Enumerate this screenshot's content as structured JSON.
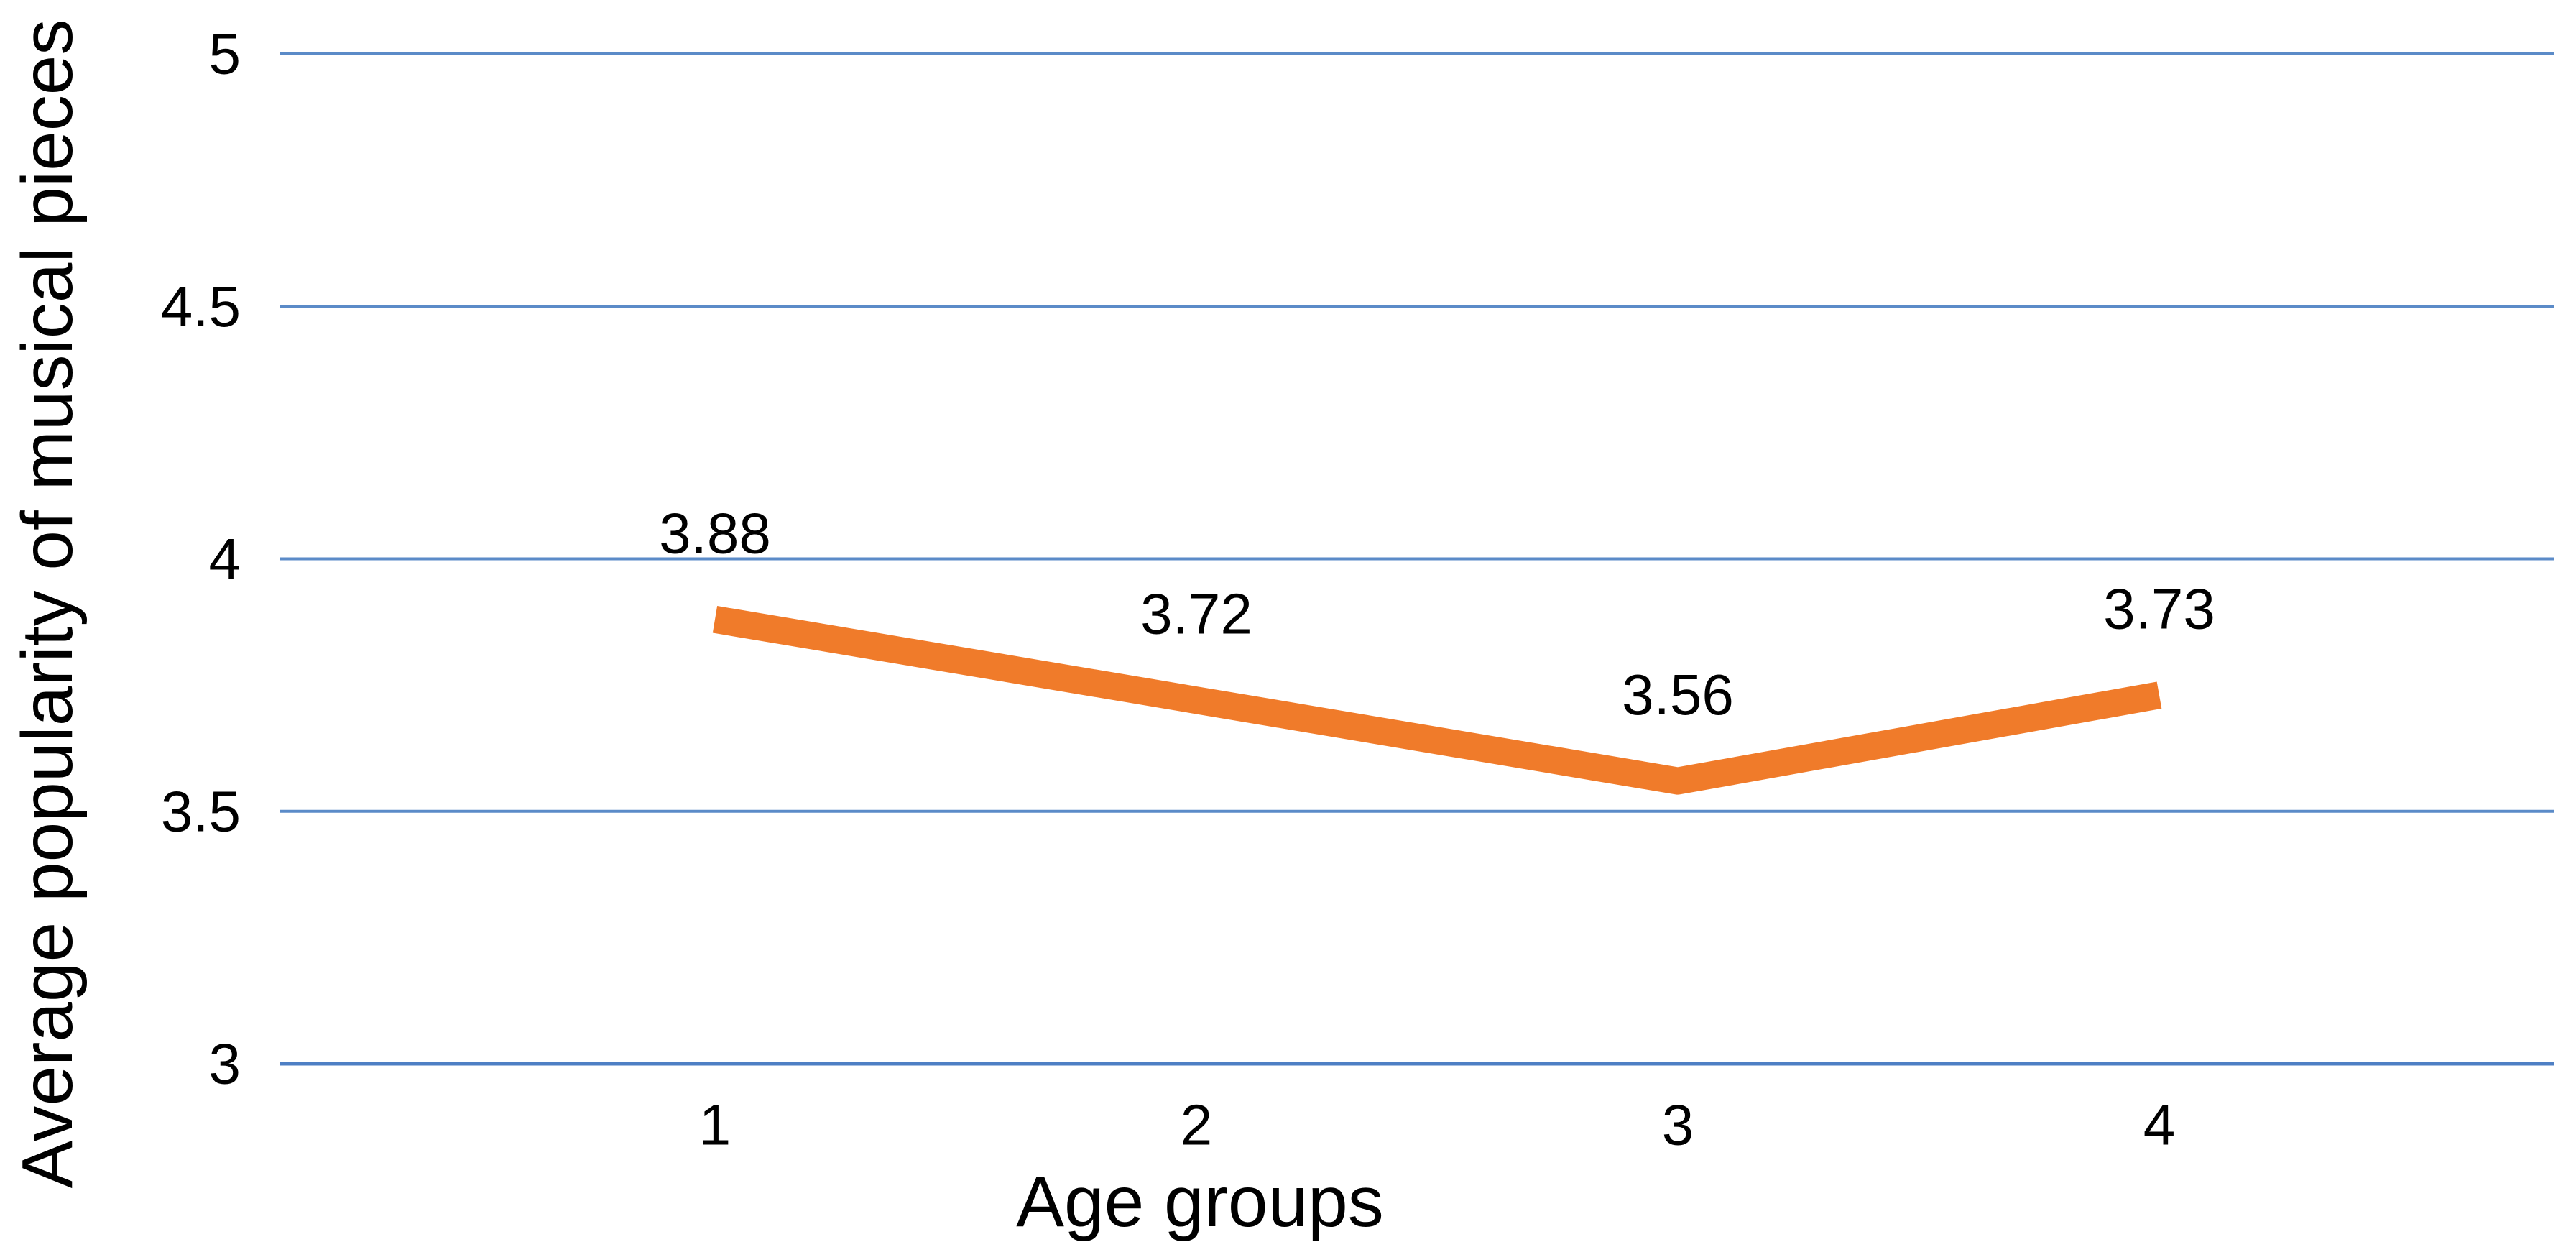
{
  "chart_data": {
    "type": "line",
    "title": "",
    "xlabel": "Age groups",
    "ylabel": "Average popularity of musical pieces",
    "categories": [
      "1",
      "2",
      "3",
      "4"
    ],
    "series": [
      {
        "values": [
          3.88,
          3.72,
          3.56,
          3.73
        ],
        "data_labels": [
          "3.88",
          "3.72",
          "3.56",
          "3.73"
        ],
        "color": "#F07B2A"
      }
    ],
    "ylim": [
      3,
      5
    ],
    "y_tick_step": 0.5,
    "y_ticks": [
      {
        "value": 5,
        "label": "5"
      },
      {
        "value": 4.5,
        "label": "4.5"
      },
      {
        "value": 4,
        "label": "4"
      },
      {
        "value": 3.5,
        "label": "3.5"
      },
      {
        "value": 3,
        "label": "3"
      }
    ],
    "grid": "horizontal",
    "legend_position": "none",
    "data_label_position": "above",
    "colors": {
      "line": "#F07B2A",
      "gridline": "#5B8BC8",
      "axis_line": "#4E7FC4",
      "text": "#000000",
      "background": "#FFFFFF"
    }
  }
}
